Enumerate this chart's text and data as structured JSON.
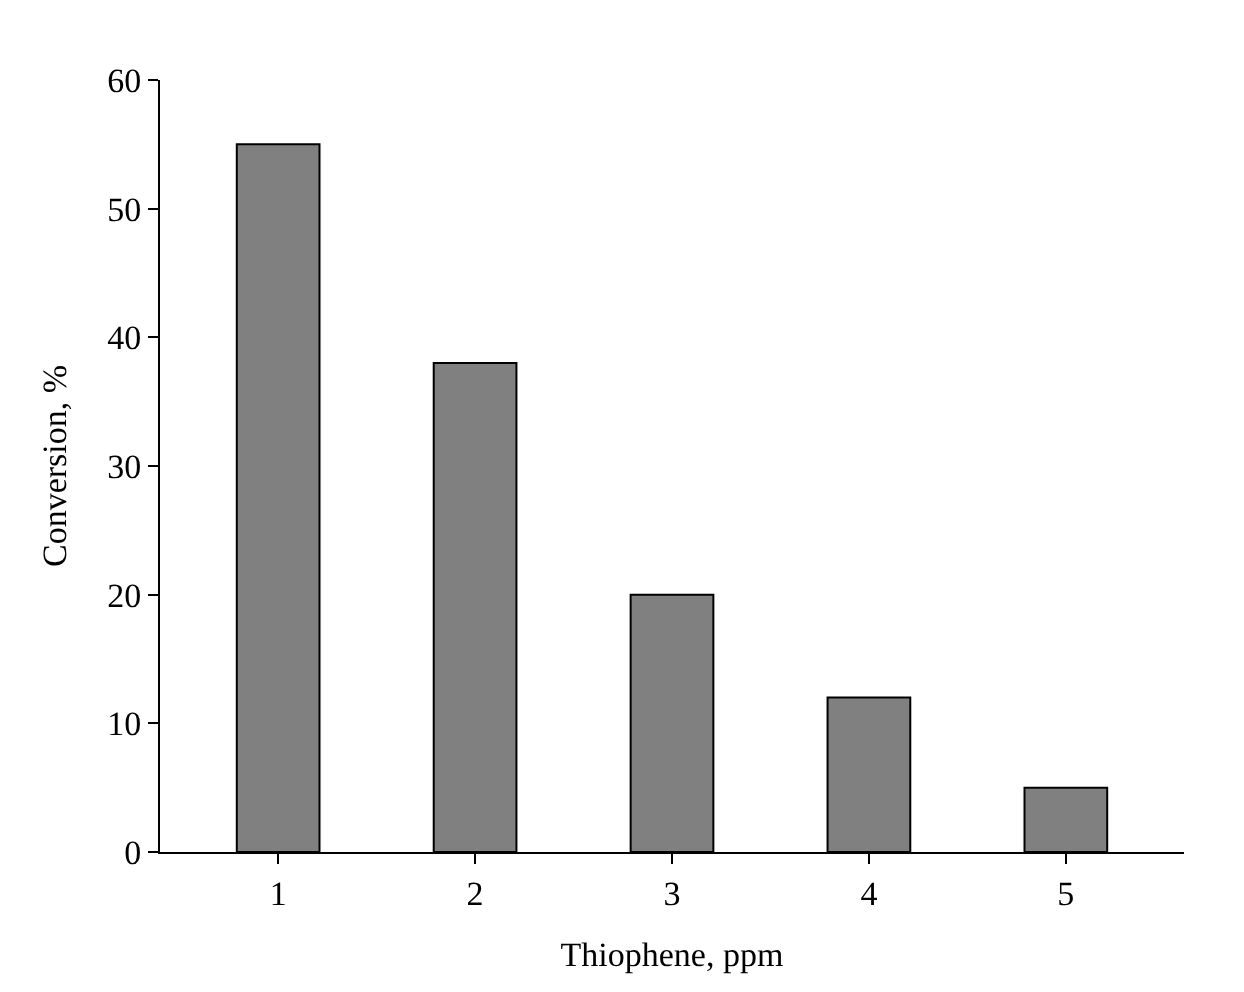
{
  "chart_data": {
    "type": "bar",
    "xlabel": "Thiophene, ppm",
    "ylabel": "Conversion, %",
    "categories": [
      "1",
      "2",
      "3",
      "4",
      "5"
    ],
    "values": [
      55,
      38,
      20,
      12,
      5
    ],
    "color": "#808080",
    "ylim": [
      0,
      60
    ],
    "yticks": [
      0,
      10,
      20,
      30,
      40,
      50,
      60
    ]
  }
}
